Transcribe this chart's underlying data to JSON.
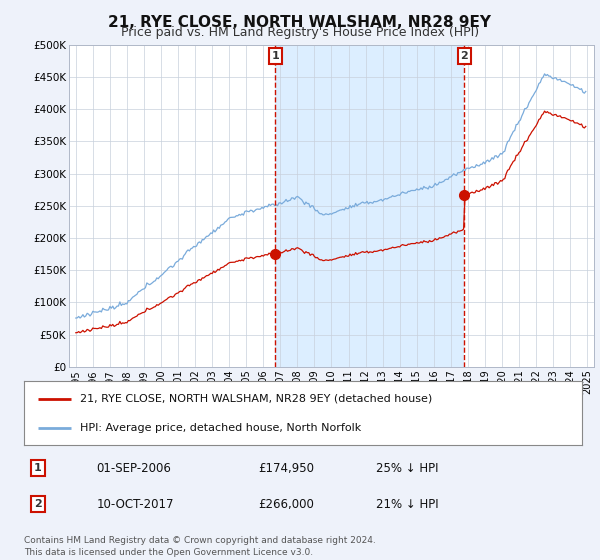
{
  "title": "21, RYE CLOSE, NORTH WALSHAM, NR28 9EY",
  "subtitle": "Price paid vs. HM Land Registry's House Price Index (HPI)",
  "ylim": [
    0,
    500000
  ],
  "yticks": [
    0,
    50000,
    100000,
    150000,
    200000,
    250000,
    300000,
    350000,
    400000,
    450000,
    500000
  ],
  "ytick_labels": [
    "£0",
    "£50K",
    "£100K",
    "£150K",
    "£200K",
    "£250K",
    "£300K",
    "£350K",
    "£400K",
    "£450K",
    "£500K"
  ],
  "hpi_color": "#7aabdb",
  "price_color": "#cc1100",
  "fill_color": "#dceeff",
  "marker1_date": "01-SEP-2006",
  "marker1_year": 2006.708,
  "marker1_price": 174950,
  "marker1_text": "25% ↓ HPI",
  "marker2_date": "10-OCT-2017",
  "marker2_year": 2017.792,
  "marker2_price": 266000,
  "marker2_text": "21% ↓ HPI",
  "legend_line1": "21, RYE CLOSE, NORTH WALSHAM, NR28 9EY (detached house)",
  "legend_line2": "HPI: Average price, detached house, North Norfolk",
  "footer": "Contains HM Land Registry data © Crown copyright and database right 2024.\nThis data is licensed under the Open Government Licence v3.0.",
  "bg_color": "#eef2fa",
  "plot_bg": "#ffffff",
  "title_fontsize": 11,
  "subtitle_fontsize": 9
}
